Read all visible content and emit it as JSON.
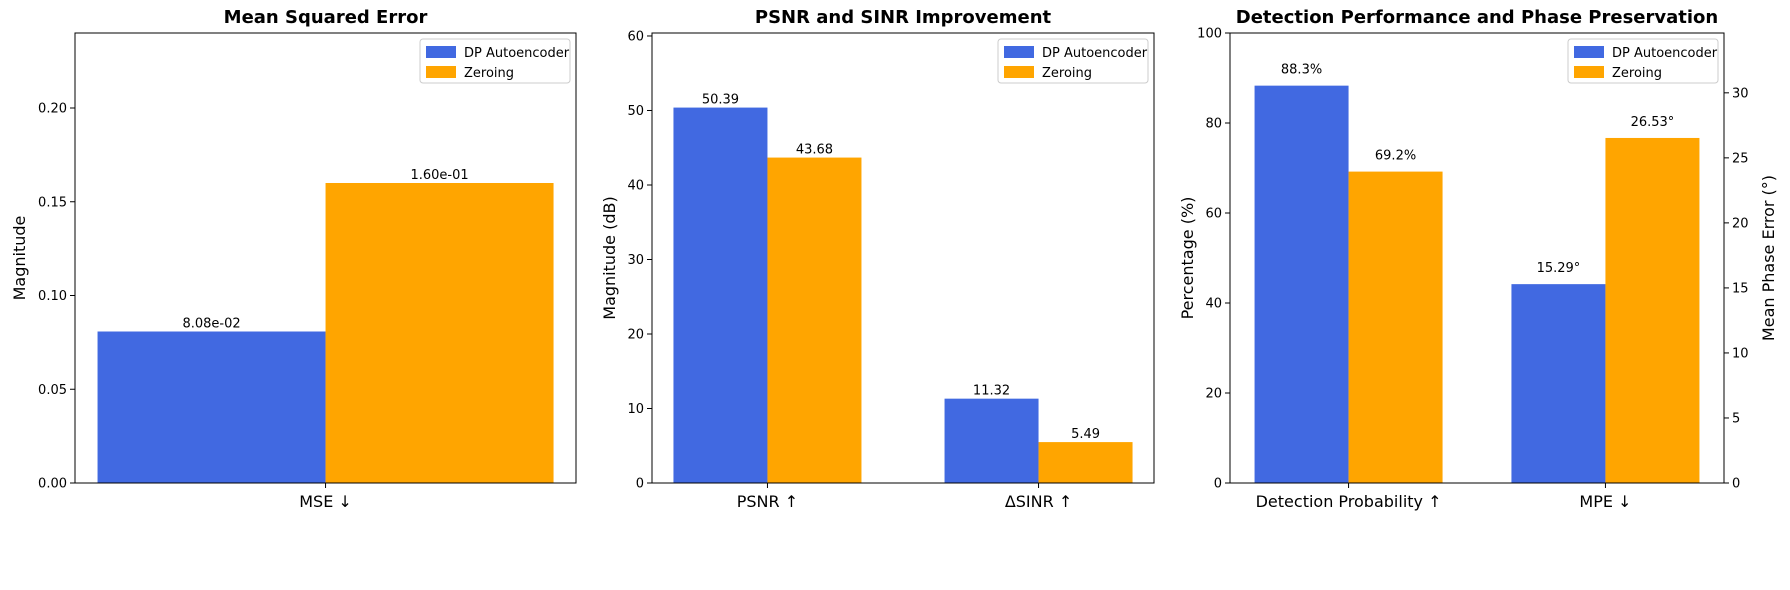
{
  "colors": {
    "dp": "#4169e1",
    "zero": "#ffa500"
  },
  "chart_data": [
    {
      "type": "bar",
      "title": "Mean Squared Error",
      "ylabel": "Magnitude",
      "ylim": [
        0,
        0.24
      ],
      "yticks": [
        0,
        0.05,
        0.1,
        0.15,
        0.2
      ],
      "ytick_labels": [
        "0.00",
        "0.05",
        "0.10",
        "0.15",
        "0.20"
      ],
      "categories": [
        "MSE ↓"
      ],
      "series": [
        {
          "name": "DP Autoencoder",
          "color": "#4169e1",
          "values": [
            0.0808
          ],
          "labels": [
            "8.08e-02"
          ]
        },
        {
          "name": "Zeroing",
          "color": "#ffa500",
          "values": [
            0.16
          ],
          "labels": [
            "1.60e-01"
          ]
        }
      ],
      "legend": "top-right"
    },
    {
      "type": "bar",
      "title": "PSNR and SINR Improvement",
      "ylabel": "Magnitude (dB)",
      "ylim": [
        0,
        60.4
      ],
      "yticks": [
        0,
        10,
        20,
        30,
        40,
        50,
        60
      ],
      "ytick_labels": [
        "0",
        "10",
        "20",
        "30",
        "40",
        "50",
        "60"
      ],
      "categories": [
        "PSNR ↑",
        "ΔSINR ↑"
      ],
      "series": [
        {
          "name": "DP Autoencoder",
          "color": "#4169e1",
          "values": [
            50.39,
            11.32
          ],
          "labels": [
            "50.39",
            "11.32"
          ]
        },
        {
          "name": "Zeroing",
          "color": "#ffa500",
          "values": [
            43.68,
            5.49
          ],
          "labels": [
            "43.68",
            "5.49"
          ]
        }
      ],
      "legend": "top-right"
    },
    {
      "type": "bar",
      "title": "Detection Performance and Phase Preservation",
      "ylabel": "Percentage (%)",
      "ylim": [
        0,
        100
      ],
      "yticks": [
        0,
        20,
        40,
        60,
        80,
        100
      ],
      "ytick_labels": [
        "0",
        "20",
        "40",
        "60",
        "80",
        "100"
      ],
      "ylabel_right": "Mean Phase Error (°)",
      "ylim_right": [
        0,
        34.6
      ],
      "yticks_right": [
        0,
        5,
        10,
        15,
        20,
        25,
        30
      ],
      "ytick_labels_right": [
        "0",
        "5",
        "10",
        "15",
        "20",
        "25",
        "30"
      ],
      "categories": [
        "Detection Probability ↑",
        "MPE ↓"
      ],
      "series": [
        {
          "name": "DP Autoencoder",
          "color": "#4169e1",
          "values": [
            88.3,
            15.29
          ],
          "axes": [
            "left",
            "right"
          ],
          "labels": [
            "88.3%",
            "15.29°"
          ]
        },
        {
          "name": "Zeroing",
          "color": "#ffa500",
          "values": [
            69.2,
            26.53
          ],
          "axes": [
            "left",
            "right"
          ],
          "labels": [
            "69.2%",
            "26.53°"
          ]
        }
      ],
      "legend": "top-right"
    }
  ]
}
